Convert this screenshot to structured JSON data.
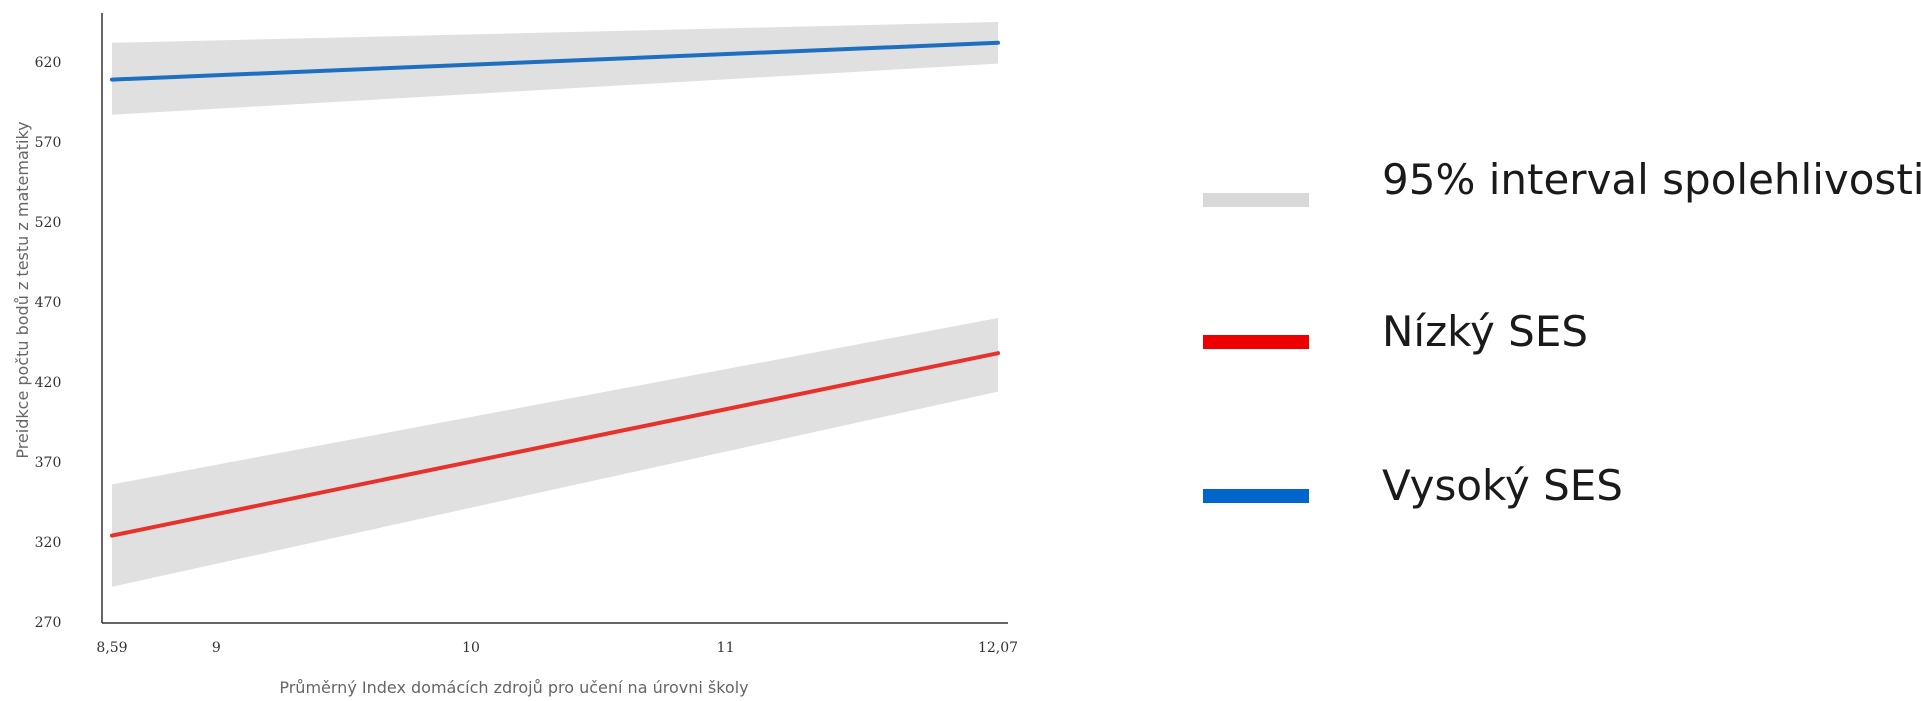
{
  "chart_data": {
    "type": "line",
    "title": "",
    "xlabel": "Průměrný Index domácích zdrojů pro učení na úrovni školy",
    "ylabel": "Preidkce počtu bodů z testu z matematiky",
    "xlim": [
      8.59,
      12.07
    ],
    "ylim": [
      270,
      640
    ],
    "x_ticks": [
      {
        "value": 8.59,
        "label": "8,59"
      },
      {
        "value": 9,
        "label": "9"
      },
      {
        "value": 10,
        "label": "10"
      },
      {
        "value": 11,
        "label": "11"
      },
      {
        "value": 12.07,
        "label": "12,07"
      }
    ],
    "y_ticks": [
      {
        "value": 270,
        "label": "270"
      },
      {
        "value": 320,
        "label": "320"
      },
      {
        "value": 370,
        "label": "370"
      },
      {
        "value": 420,
        "label": "420"
      },
      {
        "value": 470,
        "label": "470"
      },
      {
        "value": 520,
        "label": "520"
      },
      {
        "value": 570,
        "label": "570"
      },
      {
        "value": 620,
        "label": "620"
      }
    ],
    "grid": false,
    "legend_position": "right",
    "series": [
      {
        "name": "Nízký SES",
        "color": "#e8312a",
        "x": [
          8.59,
          12.07
        ],
        "y": [
          324,
          438
        ],
        "ci_lower": [
          292,
          414
        ],
        "ci_upper": [
          356,
          460
        ]
      },
      {
        "name": "Vysoký SES",
        "color": "#1f6fc1",
        "x": [
          8.59,
          12.07
        ],
        "y": [
          609,
          632
        ],
        "ci_lower": [
          587,
          619
        ],
        "ci_upper": [
          632,
          645
        ]
      }
    ],
    "ci_band_color": "#e0e0e0",
    "ci_label": "95% interval spolehlivosti"
  },
  "legend": {
    "items": [
      {
        "label": "95% interval spolehlivosti",
        "color": "#d9d9d9",
        "kind": "ci-band"
      },
      {
        "label": "Nízký SES",
        "color": "#ee0000",
        "kind": "line"
      },
      {
        "label": "Vysoký SES",
        "color": "#0066cc",
        "kind": "line"
      }
    ]
  }
}
